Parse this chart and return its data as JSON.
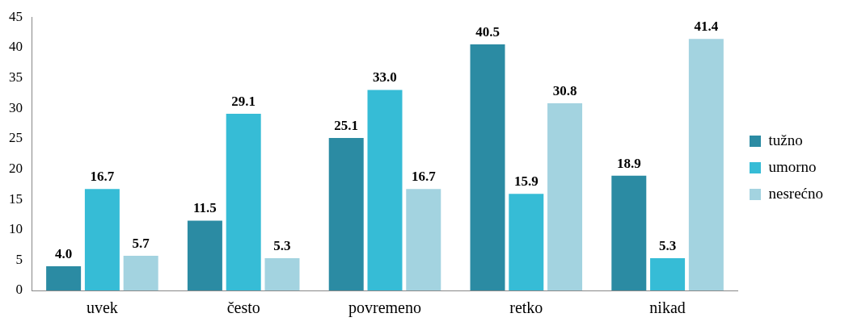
{
  "chart_data": {
    "type": "bar",
    "categories": [
      "uvek",
      "često",
      "povremeno",
      "retko",
      "nikad"
    ],
    "series": [
      {
        "name": "tužno",
        "color": "#2b8ba3",
        "values": [
          4.0,
          11.5,
          25.1,
          40.5,
          18.9
        ],
        "value_labels": [
          "4.0",
          "11.5",
          "25.1",
          "40.5",
          "18.9"
        ]
      },
      {
        "name": "umorno",
        "color": "#36bcd6",
        "values": [
          16.7,
          29.1,
          33.0,
          15.9,
          5.3
        ],
        "value_labels": [
          "16.7",
          "29.1",
          "33.0",
          "15.9",
          "5.3"
        ]
      },
      {
        "name": "nesrećno",
        "color": "#a3d3e0",
        "values": [
          5.7,
          5.3,
          16.7,
          30.8,
          41.4
        ],
        "value_labels": [
          "5.7",
          "5.3",
          "16.7",
          "30.8",
          "41.4"
        ]
      }
    ],
    "ylim": [
      0,
      45
    ],
    "yticks": [
      0,
      5,
      10,
      15,
      20,
      25,
      30,
      35,
      40,
      45
    ],
    "grid": false,
    "legend": "right"
  }
}
